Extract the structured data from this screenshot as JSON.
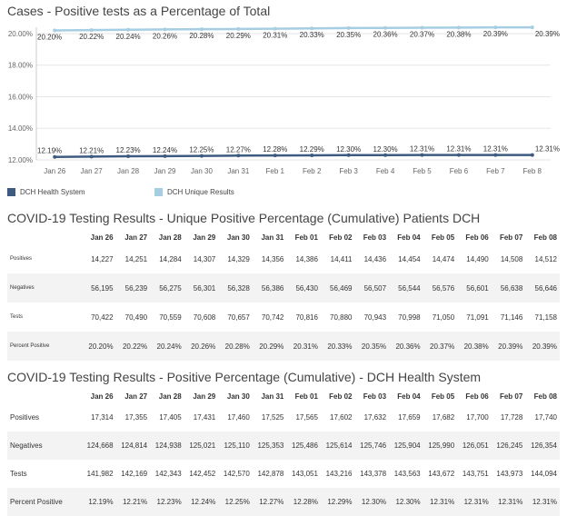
{
  "chart_title": "Cases - Positive tests as a Percentage of Total",
  "chart_data": {
    "type": "line",
    "categories": [
      "Jan 26",
      "Jan 27",
      "Jan 28",
      "Jan 29",
      "Jan 30",
      "Jan 31",
      "Feb 1",
      "Feb 2",
      "Feb 3",
      "Feb 4",
      "Feb 5",
      "Feb 6",
      "Feb 7",
      "Feb 8"
    ],
    "ylim": [
      12.0,
      20.4
    ],
    "yticks": [
      "12.00%",
      "14.00%",
      "16.00%",
      "18.00%",
      "20.00%"
    ],
    "ytick_values": [
      12,
      14,
      16,
      18,
      20
    ],
    "grid": true,
    "legend_position": "bottom-left",
    "series": [
      {
        "name": "DCH Unique Results",
        "color": "#a6cee3",
        "values": [
          20.2,
          20.22,
          20.24,
          20.26,
          20.28,
          20.29,
          20.31,
          20.33,
          20.35,
          20.36,
          20.37,
          20.38,
          20.39,
          20.39
        ],
        "labels": [
          "20.20%",
          "20.22%",
          "20.24%",
          "20.26%",
          "20.28%",
          "20.29%",
          "20.31%",
          "20.33%",
          "20.35%",
          "20.36%",
          "20.37%",
          "20.38%",
          "20.39%",
          "20.39%"
        ]
      },
      {
        "name": "DCH Health System",
        "color": "#3d5a80",
        "values": [
          12.19,
          12.21,
          12.23,
          12.24,
          12.25,
          12.27,
          12.28,
          12.29,
          12.3,
          12.3,
          12.31,
          12.31,
          12.31,
          12.31
        ],
        "labels": [
          "12.19%",
          "12.21%",
          "12.23%",
          "12.24%",
          "12.25%",
          "12.27%",
          "12.28%",
          "12.29%",
          "12.30%",
          "12.30%",
          "12.31%",
          "12.31%",
          "12.31%",
          "12.31%"
        ]
      }
    ]
  },
  "legend": [
    {
      "label": "DCH Health System",
      "color": "#3d5a80"
    },
    {
      "label": "DCH Unique Results",
      "color": "#a6cee3"
    }
  ],
  "table1": {
    "title": "COVID-19 Testing Results - Unique Positive Percentage (Cumulative) Patients DCH",
    "columns": [
      "Jan 26",
      "Jan 27",
      "Jan 28",
      "Jan 29",
      "Jan 30",
      "Jan 31",
      "Feb 01",
      "Feb 02",
      "Feb 03",
      "Feb 04",
      "Feb 05",
      "Feb 06",
      "Feb 07",
      "Feb 08"
    ],
    "rows": [
      {
        "label": "Positives",
        "values": [
          "14,227",
          "14,251",
          "14,284",
          "14,307",
          "14,329",
          "14,356",
          "14,386",
          "14,411",
          "14,436",
          "14,454",
          "14,474",
          "14,490",
          "14,508",
          "14,512"
        ]
      },
      {
        "label": "Negatives",
        "values": [
          "56,195",
          "56,239",
          "56,275",
          "56,301",
          "56,328",
          "56,386",
          "56,430",
          "56,469",
          "56,507",
          "56,544",
          "56,576",
          "56,601",
          "56,638",
          "56,646"
        ]
      },
      {
        "label": "Tests",
        "values": [
          "70,422",
          "70,490",
          "70,559",
          "70,608",
          "70,657",
          "70,742",
          "70,816",
          "70,880",
          "70,943",
          "70,998",
          "71,050",
          "71,091",
          "71,146",
          "71,158"
        ]
      },
      {
        "label": "Percent Positive",
        "values": [
          "20.20%",
          "20.22%",
          "20.24%",
          "20.26%",
          "20.28%",
          "20.29%",
          "20.31%",
          "20.33%",
          "20.35%",
          "20.36%",
          "20.37%",
          "20.38%",
          "20.39%",
          "20.39%"
        ]
      }
    ]
  },
  "table2": {
    "title": "COVID-19 Testing Results - Positive Percentage (Cumulative) - DCH Health System",
    "columns": [
      "Jan 26",
      "Jan 27",
      "Jan 28",
      "Jan 29",
      "Jan 30",
      "Jan 31",
      "Feb 01",
      "Feb 02",
      "Feb 03",
      "Feb 04",
      "Feb 05",
      "Feb 06",
      "Feb 07",
      "Feb 08"
    ],
    "rows": [
      {
        "label": "Positives",
        "values": [
          "17,314",
          "17,355",
          "17,405",
          "17,431",
          "17,460",
          "17,525",
          "17,565",
          "17,602",
          "17,632",
          "17,659",
          "17,682",
          "17,700",
          "17,728",
          "17,740"
        ]
      },
      {
        "label": "Negatives",
        "values": [
          "124,668",
          "124,814",
          "124,938",
          "125,021",
          "125,110",
          "125,353",
          "125,486",
          "125,614",
          "125,746",
          "125,904",
          "125,990",
          "126,051",
          "126,245",
          "126,354"
        ]
      },
      {
        "label": "Tests",
        "values": [
          "141,982",
          "142,169",
          "142,343",
          "142,452",
          "142,570",
          "142,878",
          "143,051",
          "143,216",
          "143,378",
          "143,563",
          "143,672",
          "143,751",
          "143,973",
          "144,094"
        ]
      },
      {
        "label": "Percent Positive",
        "values": [
          "12.19%",
          "12.21%",
          "12.23%",
          "12.24%",
          "12.25%",
          "12.27%",
          "12.28%",
          "12.29%",
          "12.30%",
          "12.30%",
          "12.31%",
          "12.31%",
          "12.31%",
          "12.31%"
        ]
      }
    ]
  }
}
